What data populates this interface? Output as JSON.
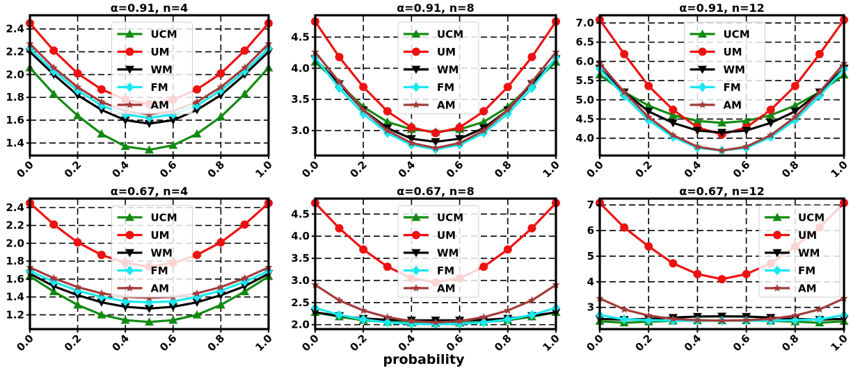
{
  "figure": {
    "xlabel": "probability"
  },
  "colors": {
    "UCM": "#138a13",
    "UM": "#ee1111",
    "WM": "#000000",
    "FM": "#19e8f0",
    "AM": "#a33b3b"
  },
  "markers": {
    "UCM": "triangle-up",
    "UM": "circle",
    "WM": "triangle-down",
    "FM": "diamond",
    "AM": "star"
  },
  "chart_data": [
    {
      "type": "line",
      "title": "α=0.91, n=4",
      "x": [
        0,
        0.1,
        0.2,
        0.3,
        0.4,
        0.5,
        0.6,
        0.7,
        0.8,
        0.9,
        1.0
      ],
      "xticks": [
        "0.0",
        "0.2",
        "0.4",
        "0.6",
        "0.8",
        "1.0"
      ],
      "yticks": [
        "1.4",
        "1.6",
        "1.8",
        "2.0",
        "2.2",
        "2.4"
      ],
      "xlim": [
        0,
        1
      ],
      "ylim": [
        1.29,
        2.52
      ],
      "legend": "upper-center",
      "series": [
        {
          "name": "UCM",
          "values": [
            2.06,
            1.83,
            1.64,
            1.48,
            1.37,
            1.34,
            1.38,
            1.48,
            1.63,
            1.83,
            2.06
          ]
        },
        {
          "name": "UM",
          "values": [
            2.45,
            2.21,
            2.01,
            1.87,
            1.78,
            1.74,
            1.78,
            1.87,
            2.01,
            2.21,
            2.45
          ]
        },
        {
          "name": "WM",
          "values": [
            2.2,
            2.0,
            1.82,
            1.69,
            1.6,
            1.57,
            1.6,
            1.69,
            1.82,
            2.0,
            2.2
          ]
        },
        {
          "name": "FM",
          "values": [
            2.23,
            2.03,
            1.86,
            1.73,
            1.65,
            1.62,
            1.65,
            1.73,
            1.86,
            2.03,
            2.23
          ]
        },
        {
          "name": "AM",
          "values": [
            2.27,
            2.06,
            1.89,
            1.76,
            1.68,
            1.65,
            1.68,
            1.76,
            1.89,
            2.06,
            2.27
          ]
        }
      ]
    },
    {
      "type": "line",
      "title": "α=0.91, n=8",
      "x": [
        0,
        0.1,
        0.2,
        0.3,
        0.4,
        0.5,
        0.6,
        0.7,
        0.8,
        0.9,
        1.0
      ],
      "xticks": [
        "0.0",
        "0.2",
        "0.4",
        "0.6",
        "0.8",
        "1.0"
      ],
      "yticks": [
        "3.0",
        "3.5",
        "4.0",
        "4.5"
      ],
      "xlim": [
        0,
        1
      ],
      "ylim": [
        2.6,
        4.85
      ],
      "legend": "upper-center",
      "series": [
        {
          "name": "UCM",
          "values": [
            4.1,
            3.75,
            3.38,
            3.14,
            3.02,
            2.98,
            3.02,
            3.14,
            3.38,
            3.75,
            4.1
          ]
        },
        {
          "name": "UM",
          "values": [
            4.75,
            4.18,
            3.7,
            3.31,
            3.05,
            2.96,
            3.05,
            3.31,
            3.7,
            4.18,
            4.75
          ]
        },
        {
          "name": "WM",
          "values": [
            4.15,
            3.75,
            3.33,
            3.04,
            2.87,
            2.82,
            2.87,
            3.04,
            3.33,
            3.75,
            4.15
          ]
        },
        {
          "name": "FM",
          "values": [
            4.17,
            3.68,
            3.27,
            2.96,
            2.77,
            2.7,
            2.77,
            2.96,
            3.27,
            3.68,
            4.17
          ]
        },
        {
          "name": "AM",
          "values": [
            4.26,
            3.78,
            3.33,
            3.0,
            2.8,
            2.72,
            2.8,
            3.0,
            3.33,
            3.78,
            4.26
          ]
        }
      ]
    },
    {
      "type": "line",
      "title": "α=0.91, n=12",
      "x": [
        0,
        0.1,
        0.2,
        0.3,
        0.4,
        0.5,
        0.6,
        0.7,
        0.8,
        0.9,
        1.0
      ],
      "xticks": [
        "0.0",
        "0.2",
        "0.4",
        "0.6",
        "0.8",
        "1.0"
      ],
      "yticks": [
        "4.0",
        "4.5",
        "5.0",
        "5.5",
        "6.0",
        "6.5",
        "7.0"
      ],
      "xlim": [
        0,
        1
      ],
      "ylim": [
        3.55,
        7.2
      ],
      "legend": "upper-center",
      "series": [
        {
          "name": "UCM",
          "values": [
            5.65,
            5.2,
            4.85,
            4.6,
            4.45,
            4.4,
            4.45,
            4.6,
            4.85,
            5.2,
            5.65
          ]
        },
        {
          "name": "UM",
          "values": [
            7.08,
            6.19,
            5.36,
            4.74,
            4.28,
            4.1,
            4.28,
            4.74,
            5.36,
            6.19,
            7.08
          ]
        },
        {
          "name": "WM",
          "values": [
            5.82,
            5.2,
            4.7,
            4.4,
            4.2,
            4.15,
            4.2,
            4.4,
            4.7,
            5.2,
            5.82
          ]
        },
        {
          "name": "FM",
          "values": [
            5.8,
            5.1,
            4.47,
            4.03,
            3.75,
            3.68,
            3.75,
            4.03,
            4.47,
            5.1,
            5.8
          ]
        },
        {
          "name": "AM",
          "values": [
            5.95,
            5.2,
            4.55,
            4.08,
            3.78,
            3.68,
            3.78,
            4.08,
            4.55,
            5.2,
            5.95
          ]
        }
      ]
    },
    {
      "type": "line",
      "title": "α=0.67, n=4",
      "x": [
        0,
        0.1,
        0.2,
        0.3,
        0.4,
        0.5,
        0.6,
        0.7,
        0.8,
        0.9,
        1.0
      ],
      "xticks": [
        "0.0",
        "0.2",
        "0.4",
        "0.6",
        "0.8",
        "1.0"
      ],
      "yticks": [
        "1.2",
        "1.4",
        "1.6",
        "1.8",
        "2.0",
        "2.2",
        "2.4"
      ],
      "xlim": [
        0,
        1
      ],
      "ylim": [
        1.04,
        2.5
      ],
      "legend": "upper-center",
      "series": [
        {
          "name": "UCM",
          "values": [
            1.63,
            1.46,
            1.31,
            1.2,
            1.14,
            1.12,
            1.14,
            1.2,
            1.31,
            1.46,
            1.63
          ]
        },
        {
          "name": "UM",
          "values": [
            2.45,
            2.21,
            2.01,
            1.87,
            1.78,
            1.74,
            1.78,
            1.87,
            2.01,
            2.21,
            2.45
          ]
        },
        {
          "name": "WM",
          "values": [
            1.66,
            1.52,
            1.42,
            1.34,
            1.29,
            1.27,
            1.29,
            1.34,
            1.42,
            1.52,
            1.66
          ]
        },
        {
          "name": "FM",
          "values": [
            1.69,
            1.57,
            1.47,
            1.4,
            1.35,
            1.34,
            1.35,
            1.4,
            1.47,
            1.57,
            1.69
          ]
        },
        {
          "name": "AM",
          "values": [
            1.73,
            1.61,
            1.51,
            1.44,
            1.4,
            1.39,
            1.4,
            1.44,
            1.51,
            1.61,
            1.73
          ]
        }
      ]
    },
    {
      "type": "line",
      "title": "α=0.67, n=8",
      "x": [
        0,
        0.1,
        0.2,
        0.3,
        0.4,
        0.5,
        0.6,
        0.7,
        0.8,
        0.9,
        1.0
      ],
      "xticks": [
        "0.0",
        "0.2",
        "0.4",
        "0.6",
        "0.8",
        "1.0"
      ],
      "yticks": [
        "2.0",
        "2.5",
        "3.0",
        "3.5",
        "4.0",
        "4.5"
      ],
      "xlim": [
        0,
        1
      ],
      "ylim": [
        1.9,
        4.85
      ],
      "legend": "upper-center",
      "series": [
        {
          "name": "UCM",
          "values": [
            2.28,
            2.18,
            2.1,
            2.06,
            2.04,
            2.03,
            2.04,
            2.06,
            2.1,
            2.18,
            2.28
          ]
        },
        {
          "name": "UM",
          "values": [
            4.75,
            4.18,
            3.7,
            3.31,
            3.05,
            2.96,
            3.05,
            3.31,
            3.7,
            4.18,
            4.75
          ]
        },
        {
          "name": "WM",
          "values": [
            2.28,
            2.2,
            2.14,
            2.11,
            2.1,
            2.1,
            2.1,
            2.11,
            2.14,
            2.2,
            2.28
          ]
        },
        {
          "name": "FM",
          "values": [
            2.38,
            2.22,
            2.12,
            2.05,
            2.02,
            2.01,
            2.02,
            2.05,
            2.12,
            2.22,
            2.38
          ]
        },
        {
          "name": "AM",
          "values": [
            2.9,
            2.55,
            2.32,
            2.17,
            2.08,
            2.05,
            2.08,
            2.17,
            2.32,
            2.55,
            2.9
          ]
        }
      ]
    },
    {
      "type": "line",
      "title": "α=0.67, n=12",
      "x": [
        0,
        0.1,
        0.2,
        0.3,
        0.4,
        0.5,
        0.6,
        0.7,
        0.8,
        0.9,
        1.0
      ],
      "xticks": [
        "0.0",
        "0.2",
        "0.4",
        "0.6",
        "0.8",
        "1.0"
      ],
      "yticks": [
        "3",
        "4",
        "5",
        "6",
        "7"
      ],
      "xlim": [
        0,
        1
      ],
      "ylim": [
        2.15,
        7.25
      ],
      "legend": "upper-right",
      "series": [
        {
          "name": "UCM",
          "values": [
            2.46,
            2.4,
            2.44,
            2.47,
            2.48,
            2.48,
            2.48,
            2.47,
            2.44,
            2.4,
            2.46
          ]
        },
        {
          "name": "UM",
          "values": [
            7.08,
            6.12,
            5.38,
            4.72,
            4.3,
            4.1,
            4.3,
            4.72,
            5.38,
            6.12,
            7.08
          ]
        },
        {
          "name": "WM",
          "values": [
            2.55,
            2.52,
            2.55,
            2.6,
            2.64,
            2.65,
            2.64,
            2.6,
            2.55,
            2.52,
            2.55
          ]
        },
        {
          "name": "FM",
          "values": [
            2.7,
            2.53,
            2.5,
            2.48,
            2.48,
            2.48,
            2.48,
            2.48,
            2.5,
            2.53,
            2.7
          ]
        },
        {
          "name": "AM",
          "values": [
            3.35,
            2.92,
            2.68,
            2.55,
            2.5,
            2.48,
            2.5,
            2.55,
            2.68,
            2.92,
            3.35
          ]
        }
      ]
    }
  ]
}
